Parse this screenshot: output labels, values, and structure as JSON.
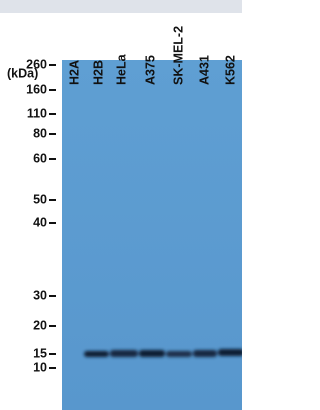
{
  "unit_label": "(kDa)",
  "lanes": [
    "H2A",
    "H2B",
    "HeLa",
    "A375",
    "SK-MEL-2",
    "A431",
    "K562"
  ],
  "markers": [
    "260",
    "160",
    "110",
    "80",
    "60",
    "50",
    "40",
    "30",
    "20",
    "15",
    "10"
  ]
}
